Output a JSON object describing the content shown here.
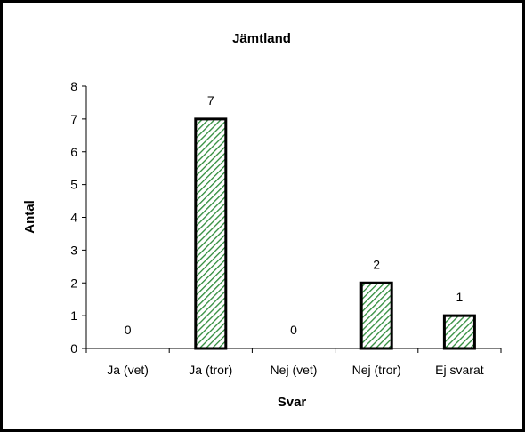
{
  "chart_data": {
    "type": "bar",
    "title": "Jämtland",
    "xlabel": "Svar",
    "ylabel": "Antal",
    "categories": [
      "Ja (vet)",
      "Ja (tror)",
      "Nej (vet)",
      "Nej (tror)",
      "Ej svarat"
    ],
    "values": [
      0,
      7,
      0,
      2,
      1
    ],
    "ylim": [
      0,
      8
    ],
    "yticks": [
      0,
      1,
      2,
      3,
      4,
      5,
      6,
      7,
      8
    ],
    "grid": false,
    "legend": "none",
    "bar_fill_color": "#2e8b3a",
    "bar_fill_pattern": "diagonal-hatch",
    "bar_border_color": "#000000"
  }
}
